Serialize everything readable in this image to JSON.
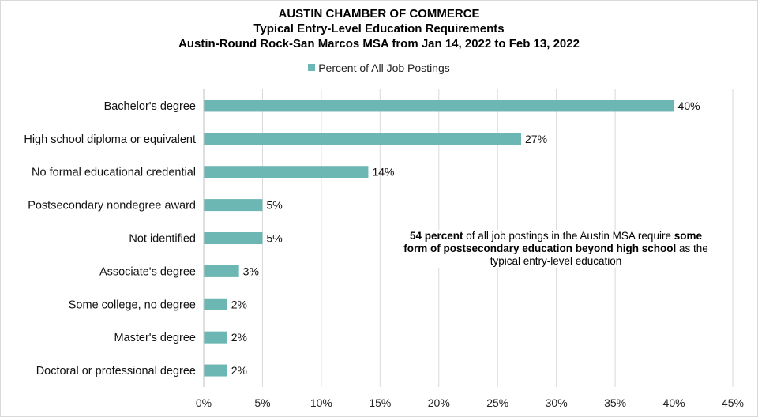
{
  "chart_data": {
    "type": "bar",
    "orientation": "horizontal",
    "title": [
      "AUSTIN CHAMBER OF COMMERCE",
      "Typical Entry-Level Education Requirements",
      "Austin-Round Rock-San Marcos MSA from Jan 14, 2022 to Feb 13, 2022"
    ],
    "legend": {
      "position": "top",
      "entries": [
        "Percent of All Job Postings"
      ]
    },
    "categories": [
      "Bachelor's degree",
      "High school diploma or equivalent",
      "No formal educational credential",
      "Postsecondary nondegree award",
      "Not identified",
      "Associate's degree",
      "Some college, no degree",
      "Master's degree",
      "Doctoral or professional degree"
    ],
    "series": [
      {
        "name": "Percent of All Job Postings",
        "color": "#6cb7b3",
        "values": [
          40,
          27,
          14,
          5,
          5,
          3,
          2,
          2,
          2
        ]
      }
    ],
    "data_labels": [
      "40%",
      "27%",
      "14%",
      "5%",
      "5%",
      "3%",
      "2%",
      "2%",
      "2%"
    ],
    "x_ticks": [
      "0%",
      "5%",
      "10%",
      "15%",
      "20%",
      "25%",
      "30%",
      "35%",
      "40%",
      "45%"
    ],
    "xlim": [
      0,
      45
    ],
    "grid": "vertical",
    "annotation": {
      "parts": [
        {
          "text": "54 percent",
          "bold": true
        },
        {
          "text": " of all job postings in the Austin MSA require ",
          "bold": false
        },
        {
          "text": "some form of postsecondary education beyond high school",
          "bold": true
        },
        {
          "text": " as the typical entry-level education",
          "bold": false
        }
      ]
    }
  }
}
